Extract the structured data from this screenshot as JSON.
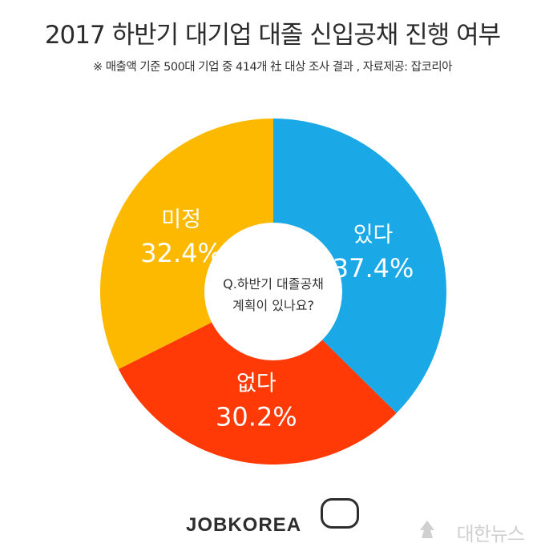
{
  "header": {
    "title": "2017 하반기 대기업 대졸 신입공채 진행 여부",
    "subtitle": "※ 매출액 기준 500대 기업 중 414개 社 대상 조사 결과 , 자료제공: 잡코리아"
  },
  "center": {
    "line1": "Q.하반기 대졸공채",
    "line2": "계획이 있나요?"
  },
  "chart_data": {
    "type": "pie",
    "categories": [
      "있다",
      "없다",
      "미정"
    ],
    "values": [
      37.4,
      30.2,
      32.4
    ],
    "value_labels": [
      "37.4%",
      "30.2%",
      "32.4%"
    ],
    "colors": [
      "#1aa9e6",
      "#ff3a06",
      "#fcb900"
    ],
    "start": "12 o'clock",
    "direction": "clockwise",
    "donut": true
  },
  "footer": {
    "logo": "JOBKOREA",
    "watermark": "대한뉴스"
  }
}
